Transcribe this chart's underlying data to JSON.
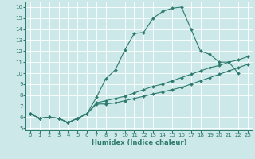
{
  "xlabel": "Humidex (Indice chaleur)",
  "xlim": [
    -0.5,
    23.5
  ],
  "ylim": [
    4.8,
    16.5
  ],
  "xticks": [
    0,
    1,
    2,
    3,
    4,
    5,
    6,
    7,
    8,
    9,
    10,
    11,
    12,
    13,
    14,
    15,
    16,
    17,
    18,
    19,
    20,
    21,
    22,
    23
  ],
  "yticks": [
    5,
    6,
    7,
    8,
    9,
    10,
    11,
    12,
    13,
    14,
    15,
    16
  ],
  "bg_color": "#cce8e8",
  "line_color": "#2d7a6e",
  "grid_color": "#b8d8d8",
  "line1_x": [
    0,
    1,
    2,
    3,
    4,
    5,
    6,
    7,
    8,
    9,
    10,
    11,
    12,
    13,
    14,
    15,
    16,
    17,
    18,
    19,
    20,
    21,
    22
  ],
  "line1_y": [
    6.3,
    5.9,
    6.0,
    5.9,
    5.5,
    5.9,
    6.3,
    7.8,
    9.5,
    10.3,
    12.1,
    13.6,
    13.7,
    15.0,
    15.6,
    15.9,
    16.0,
    14.0,
    12.0,
    11.7,
    11.0,
    11.0,
    10.0
  ],
  "line2_x": [
    0,
    1,
    2,
    3,
    4,
    5,
    6,
    7,
    8,
    9,
    10,
    11,
    12,
    13,
    14,
    15,
    16,
    17,
    18,
    19,
    20,
    21,
    22,
    23
  ],
  "line2_y": [
    6.3,
    5.9,
    6.0,
    5.9,
    5.5,
    5.9,
    6.3,
    7.3,
    7.5,
    7.7,
    7.9,
    8.2,
    8.5,
    8.8,
    9.0,
    9.3,
    9.6,
    9.9,
    10.2,
    10.5,
    10.7,
    11.0,
    11.2,
    11.5
  ],
  "line3_x": [
    0,
    1,
    2,
    3,
    4,
    5,
    6,
    7,
    8,
    9,
    10,
    11,
    12,
    13,
    14,
    15,
    16,
    17,
    18,
    19,
    20,
    21,
    22,
    23
  ],
  "line3_y": [
    6.3,
    5.9,
    6.0,
    5.9,
    5.5,
    5.9,
    6.3,
    7.2,
    7.2,
    7.3,
    7.5,
    7.7,
    7.9,
    8.1,
    8.3,
    8.5,
    8.7,
    9.0,
    9.3,
    9.6,
    9.9,
    10.2,
    10.5,
    10.8
  ],
  "markersize": 2.0,
  "linewidth": 0.8,
  "tick_fontsize": 5.0,
  "label_fontsize": 6.0
}
